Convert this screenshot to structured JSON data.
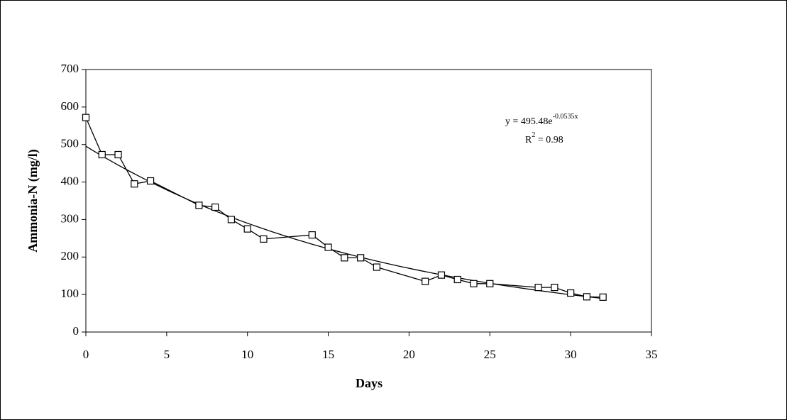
{
  "chart_data": {
    "type": "line",
    "x_label": "Days",
    "y_label": "Ammonia-N (mg/l)",
    "x": [
      0,
      1,
      2,
      3,
      4,
      7,
      8,
      9,
      10,
      11,
      14,
      15,
      16,
      17,
      18,
      21,
      22,
      23,
      24,
      25,
      28,
      29,
      30,
      31,
      32
    ],
    "values": [
      572,
      473,
      473,
      395,
      403,
      338,
      333,
      300,
      275,
      248,
      259,
      226,
      198,
      198,
      173,
      135,
      152,
      140,
      129,
      129,
      119,
      119,
      104,
      94,
      93
    ],
    "color": "#000000",
    "marker": "square",
    "xlim": [
      0,
      35
    ],
    "xticks": [
      0,
      5,
      10,
      15,
      20,
      25,
      30,
      35
    ],
    "ylim": [
      0,
      700
    ],
    "yticks": [
      0,
      100,
      200,
      300,
      400,
      500,
      600,
      700
    ],
    "grid": false,
    "trendline": {
      "type": "exponential",
      "a": 495.48,
      "b": -0.0535,
      "r2": 0.98,
      "equation": "y = 495.48e",
      "equation_exponent": "-0.0535x",
      "r2_symbol": "R",
      "r2_exponent": "2",
      "r2_text": " = 0.98"
    }
  }
}
